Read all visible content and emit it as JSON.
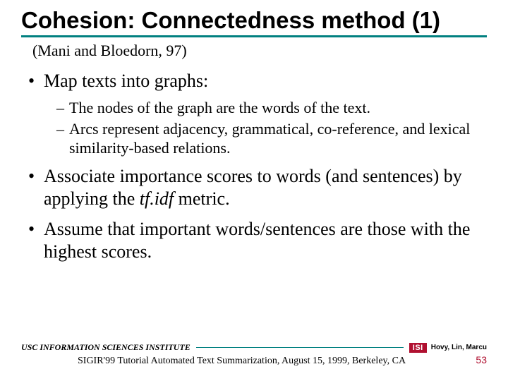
{
  "title": "Cohesion: Connectedness  method (1)",
  "accent_color": "#008080",
  "citation": "(Mani and Bloedorn, 97)",
  "bullets": [
    {
      "text": "Map texts into graphs:",
      "sub": [
        "The nodes of the graph are the words of the text.",
        "Arcs represent adjacency, grammatical, co-reference, and lexical similarity-based relations."
      ]
    },
    {
      "text_pre": "Associate importance scores to words (and sentences) by applying the ",
      "text_ital": "tf.idf",
      "text_post": " metric."
    },
    {
      "text": "Assume that important words/sentences are those with the highest scores."
    }
  ],
  "footer": {
    "institute": "USC INFORMATION SCIENCES INSTITUTE",
    "logo": "ISI",
    "authors": "Hovy, Lin, Marcu",
    "venue": "SIGIR'99 Tutorial Automated Text Summarization, August 15, 1999, Berkeley, CA",
    "page": "53",
    "page_color": "#b01030",
    "line_color": "#008080"
  }
}
